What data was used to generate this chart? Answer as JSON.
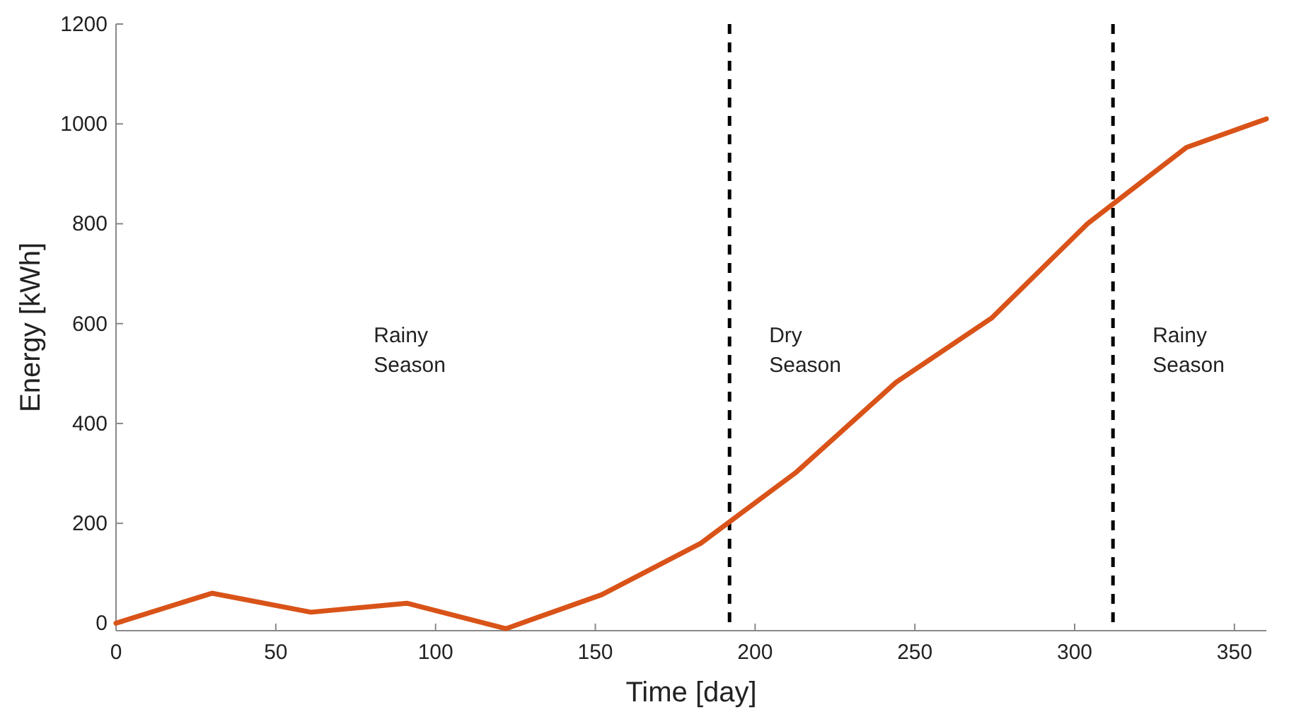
{
  "chart_data": {
    "type": "line",
    "xlabel": "Time [day]",
    "ylabel": "Energy [kWh]",
    "x": [
      0,
      30,
      61,
      91,
      122,
      152,
      183,
      213,
      244,
      274,
      304,
      335,
      360
    ],
    "series": [
      {
        "color": "#d95319",
        "values": [
          0,
          60,
          22,
          40,
          -11,
          57,
          160,
          303,
          482,
          611,
          800,
          953,
          1010
        ]
      }
    ],
    "xlim": [
      0,
      360
    ],
    "xticks": [
      0,
      50,
      100,
      150,
      200,
      250,
      300,
      350
    ],
    "ylim": [
      -15,
      1200
    ],
    "yticks": [
      0,
      200,
      400,
      600,
      800,
      1000,
      1200
    ],
    "ref_lines": [
      {
        "axis": "x",
        "value": 192,
        "color": "#000000",
        "line_style": "dashed"
      },
      {
        "axis": "x",
        "value": 312,
        "color": "#000000",
        "line_style": "dashed"
      }
    ],
    "annotations": [
      "Rainy\nSeason",
      "Dry\nSeason",
      "Rainy\nSeason"
    ],
    "grid": false,
    "marker": "none",
    "line_style": "solid"
  }
}
